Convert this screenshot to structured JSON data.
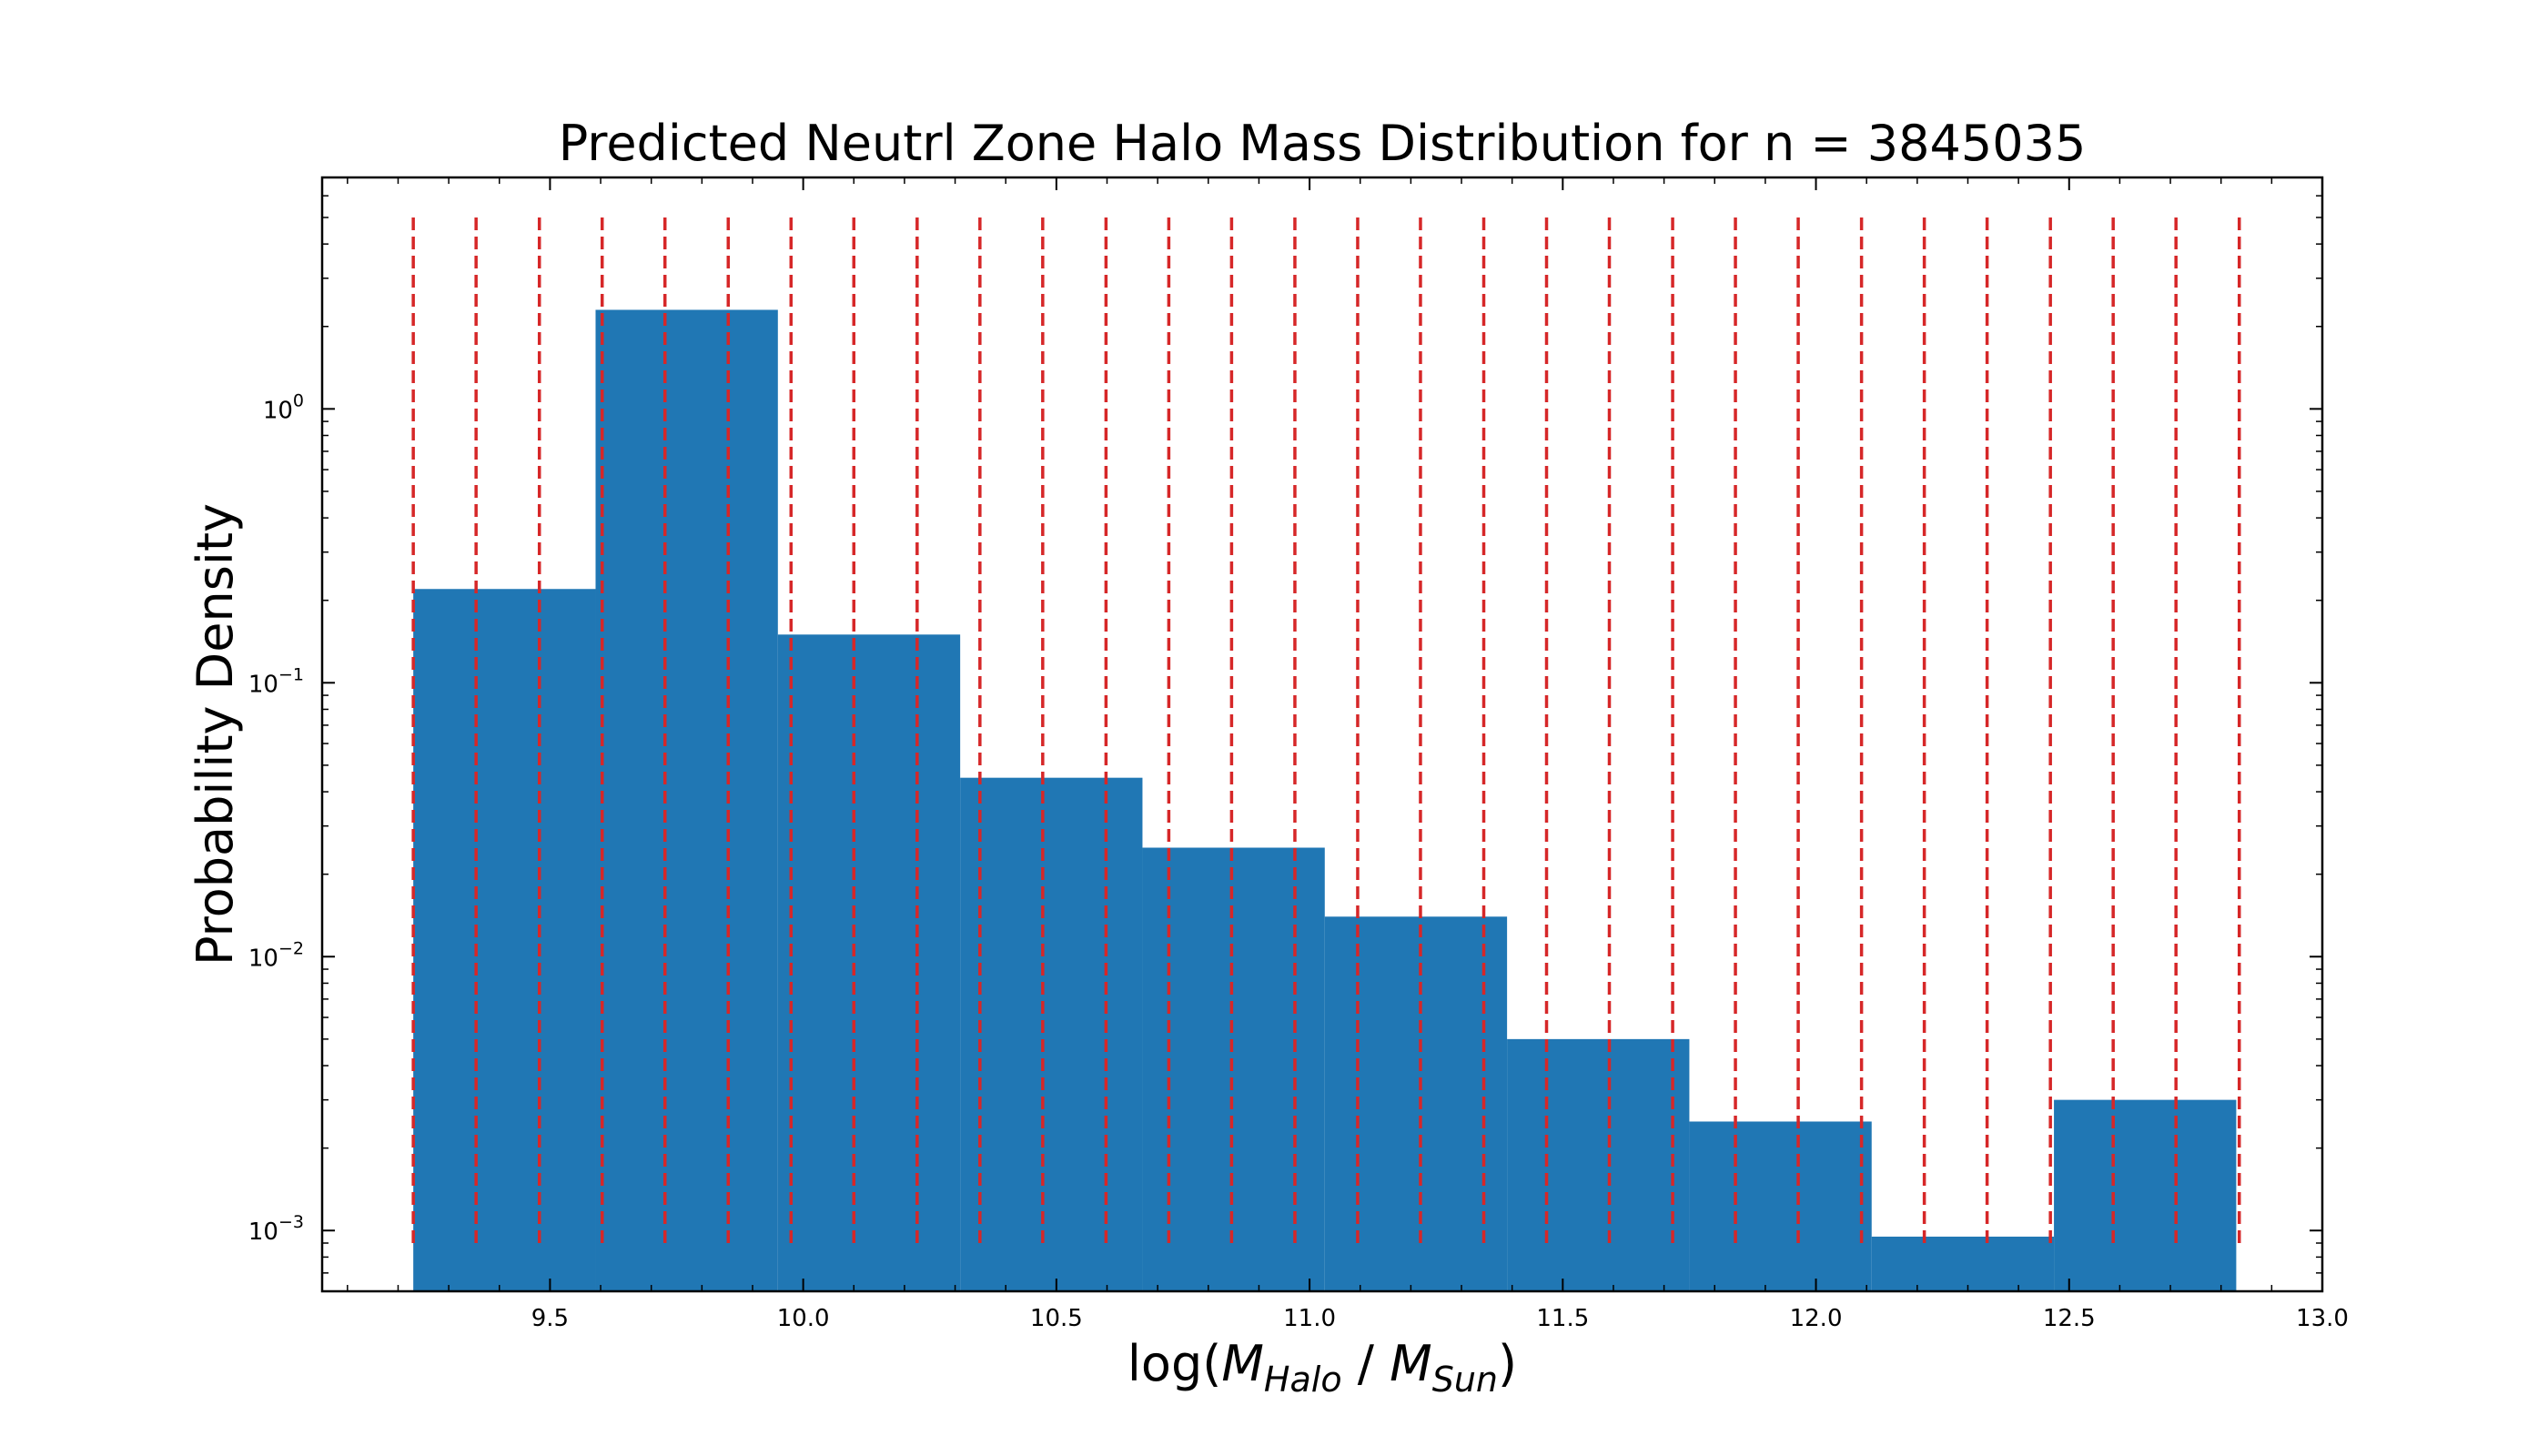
{
  "chart_data": {
    "type": "bar",
    "title": "Predicted Neutrl Zone Halo Mass Distribution for n = 3845035",
    "xlabel": {
      "prefix": "log(",
      "m1": "M",
      "sub1": "Halo",
      "sep": " / ",
      "m2": "M",
      "sub2": "Sun",
      "suffix": ")"
    },
    "ylabel": "Probability Density",
    "yscale": "log",
    "xlim": [
      9.05,
      13.0
    ],
    "ylim": [
      0.0006,
      7.0
    ],
    "x_ticks": [
      "9.5",
      "10.0",
      "10.5",
      "11.0",
      "11.5",
      "12.0",
      "12.5",
      "13.0"
    ],
    "x_tick_values": [
      9.5,
      10.0,
      10.5,
      11.0,
      11.5,
      12.0,
      12.5,
      13.0
    ],
    "y_ticks": [
      {
        "value": 1.0,
        "base": "10",
        "exp": "0"
      },
      {
        "value": 0.1,
        "base": "10",
        "exp": "−1"
      },
      {
        "value": 0.01,
        "base": "10",
        "exp": "−2"
      },
      {
        "value": 0.001,
        "base": "10",
        "exp": "−3"
      }
    ],
    "bars": [
      {
        "x0": 9.23,
        "x1": 9.59,
        "value": 0.22
      },
      {
        "x0": 9.59,
        "x1": 9.95,
        "value": 2.3
      },
      {
        "x0": 9.95,
        "x1": 10.31,
        "value": 0.15
      },
      {
        "x0": 10.31,
        "x1": 10.67,
        "value": 0.045
      },
      {
        "x0": 10.67,
        "x1": 11.03,
        "value": 0.025
      },
      {
        "x0": 11.03,
        "x1": 11.39,
        "value": 0.014
      },
      {
        "x0": 11.39,
        "x1": 11.75,
        "value": 0.005
      },
      {
        "x0": 11.75,
        "x1": 12.11,
        "value": 0.0025
      },
      {
        "x0": 12.11,
        "x1": 12.47,
        "value": 0.00095
      },
      {
        "x0": 12.47,
        "x1": 12.83,
        "value": 0.003
      }
    ],
    "vlines": [
      9.23,
      9.354,
      9.479,
      9.603,
      9.727,
      9.852,
      9.976,
      10.1,
      10.225,
      10.349,
      10.473,
      10.598,
      10.722,
      10.846,
      10.971,
      11.095,
      11.219,
      11.344,
      11.468,
      11.592,
      11.717,
      11.841,
      11.965,
      12.09,
      12.214,
      12.338,
      12.463,
      12.587,
      12.711,
      12.836
    ],
    "vline_ymin": 0.00088,
    "vline_ymax": 5.0,
    "colors": {
      "bar": "#2077b4",
      "vline": "#d62728",
      "axis": "#000000"
    },
    "grid": false,
    "legend": "none"
  }
}
